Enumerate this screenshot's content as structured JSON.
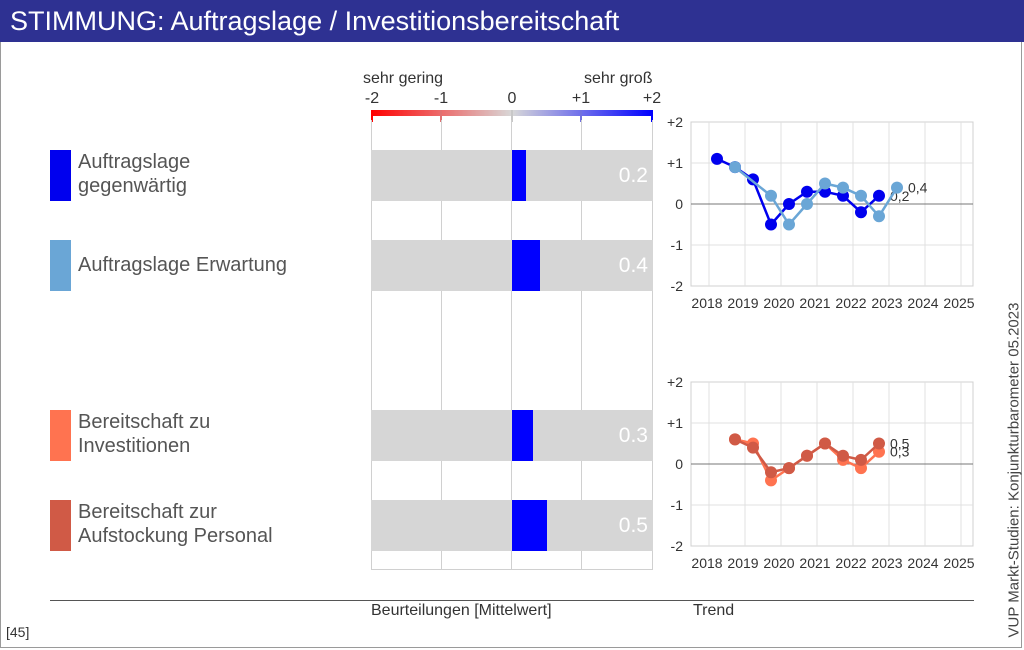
{
  "title": "STIMMUNG: Auftragslage / Investitionsbereitschaft",
  "scale": {
    "low_label": "sehr gering",
    "high_label": "sehr groß",
    "ticks": [
      "-2",
      "-1",
      "0",
      "+1",
      "+2"
    ]
  },
  "items": [
    {
      "label": "Auftragslage\ngegenwärtig",
      "color": "#0000ee",
      "value": 0.2,
      "value_label": "0.2"
    },
    {
      "label": "Auftragslage Erwartung",
      "color": "#6aa6d6",
      "value": 0.4,
      "value_label": "0.4"
    },
    {
      "label": "Bereitschaft zu\nInvestitionen",
      "color": "#ff7350",
      "value": 0.3,
      "value_label": "0.3"
    },
    {
      "label": "Bereitschaft zur\nAufstockung Personal",
      "color": "#d05a46",
      "value": 0.5,
      "value_label": "0.5"
    }
  ],
  "chart_data": [
    {
      "type": "bar",
      "categories": [
        "Auftragslage gegenwärtig",
        "Auftragslage Erwartung",
        "Bereitschaft zu Investitionen",
        "Bereitschaft zur Aufstockung Personal"
      ],
      "values": [
        0.2,
        0.4,
        0.3,
        0.5
      ],
      "xlim": [
        -2,
        2
      ],
      "xlabel": "Beurteilungen [Mittelwert]"
    },
    {
      "type": "line",
      "x_ticks": [
        "2018",
        "2019",
        "2020",
        "2021",
        "2022",
        "2023",
        "2024",
        "2025"
      ],
      "y_ticks": [
        "+2",
        "+1",
        "0",
        "-1",
        "-2"
      ],
      "ylim": [
        -2,
        2
      ],
      "x": [
        2018.5,
        2019.0,
        2019.5,
        2020.0,
        2020.5,
        2021.0,
        2021.5,
        2022.0,
        2022.5,
        2023.0,
        2023.5
      ],
      "series": [
        {
          "color": "#0000ee",
          "values": [
            1.1,
            0.9,
            0.6,
            -0.5,
            0.0,
            0.3,
            0.3,
            0.2,
            -0.2,
            0.2,
            null
          ],
          "end_label": "0,2"
        },
        {
          "color": "#6aa6d6",
          "values": [
            null,
            0.9,
            null,
            0.2,
            -0.5,
            0.0,
            0.5,
            0.4,
            0.2,
            -0.3,
            0.4
          ],
          "end_label": "0,4"
        }
      ]
    },
    {
      "type": "line",
      "x_ticks": [
        "2018",
        "2019",
        "2020",
        "2021",
        "2022",
        "2023",
        "2024",
        "2025"
      ],
      "y_ticks": [
        "+2",
        "+1",
        "0",
        "-1",
        "-2"
      ],
      "ylim": [
        -2,
        2
      ],
      "x": [
        2019.0,
        2019.5,
        2020.0,
        2020.5,
        2021.0,
        2021.5,
        2022.0,
        2022.5,
        2023.0
      ],
      "series": [
        {
          "color": "#ff7350",
          "values": [
            0.6,
            0.5,
            -0.4,
            -0.1,
            0.2,
            0.5,
            0.1,
            -0.1,
            0.3
          ],
          "end_label": "0,3"
        },
        {
          "color": "#d05a46",
          "values": [
            0.6,
            0.4,
            -0.2,
            -0.1,
            0.2,
            0.5,
            0.2,
            0.1,
            0.5
          ],
          "end_label": "0,5"
        }
      ]
    }
  ],
  "footer": {
    "left": "Beurteilungen [Mittelwert]",
    "right": "Trend"
  },
  "side_text": "VUP Markt-Studien: Konjunkturbarometer 05.2023",
  "page_number": "[45]"
}
